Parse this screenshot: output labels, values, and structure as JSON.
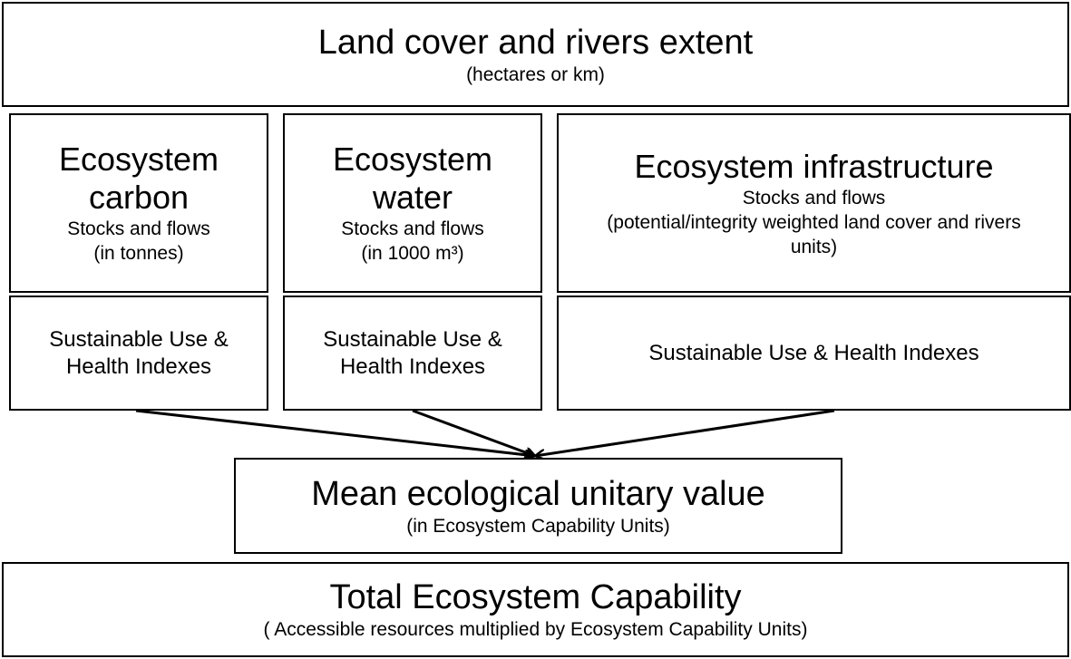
{
  "top": {
    "title": "Land cover and rivers extent",
    "subtitle": "(hectares or km)"
  },
  "columns": [
    {
      "title": "Ecosystem carbon",
      "lines": [
        "Stocks and flows",
        "(in tonnes)"
      ],
      "index": "Sustainable Use & Health Indexes"
    },
    {
      "title": "Ecosystem water",
      "lines": [
        "Stocks and flows",
        "(in 1000 m³)"
      ],
      "index": "Sustainable Use & Health Indexes"
    },
    {
      "title": "Ecosystem infrastructure",
      "lines": [
        "Stocks and flows",
        "(potential/integrity weighted land cover and rivers units)"
      ],
      "index": "Sustainable Use & Health Indexes"
    }
  ],
  "mean": {
    "title": "Mean ecological unitary value",
    "subtitle": "(in Ecosystem Capability Units)"
  },
  "total": {
    "title": "Total Ecosystem Capability",
    "subtitle": "( Accessible resources multiplied by Ecosystem Capability Units)"
  }
}
